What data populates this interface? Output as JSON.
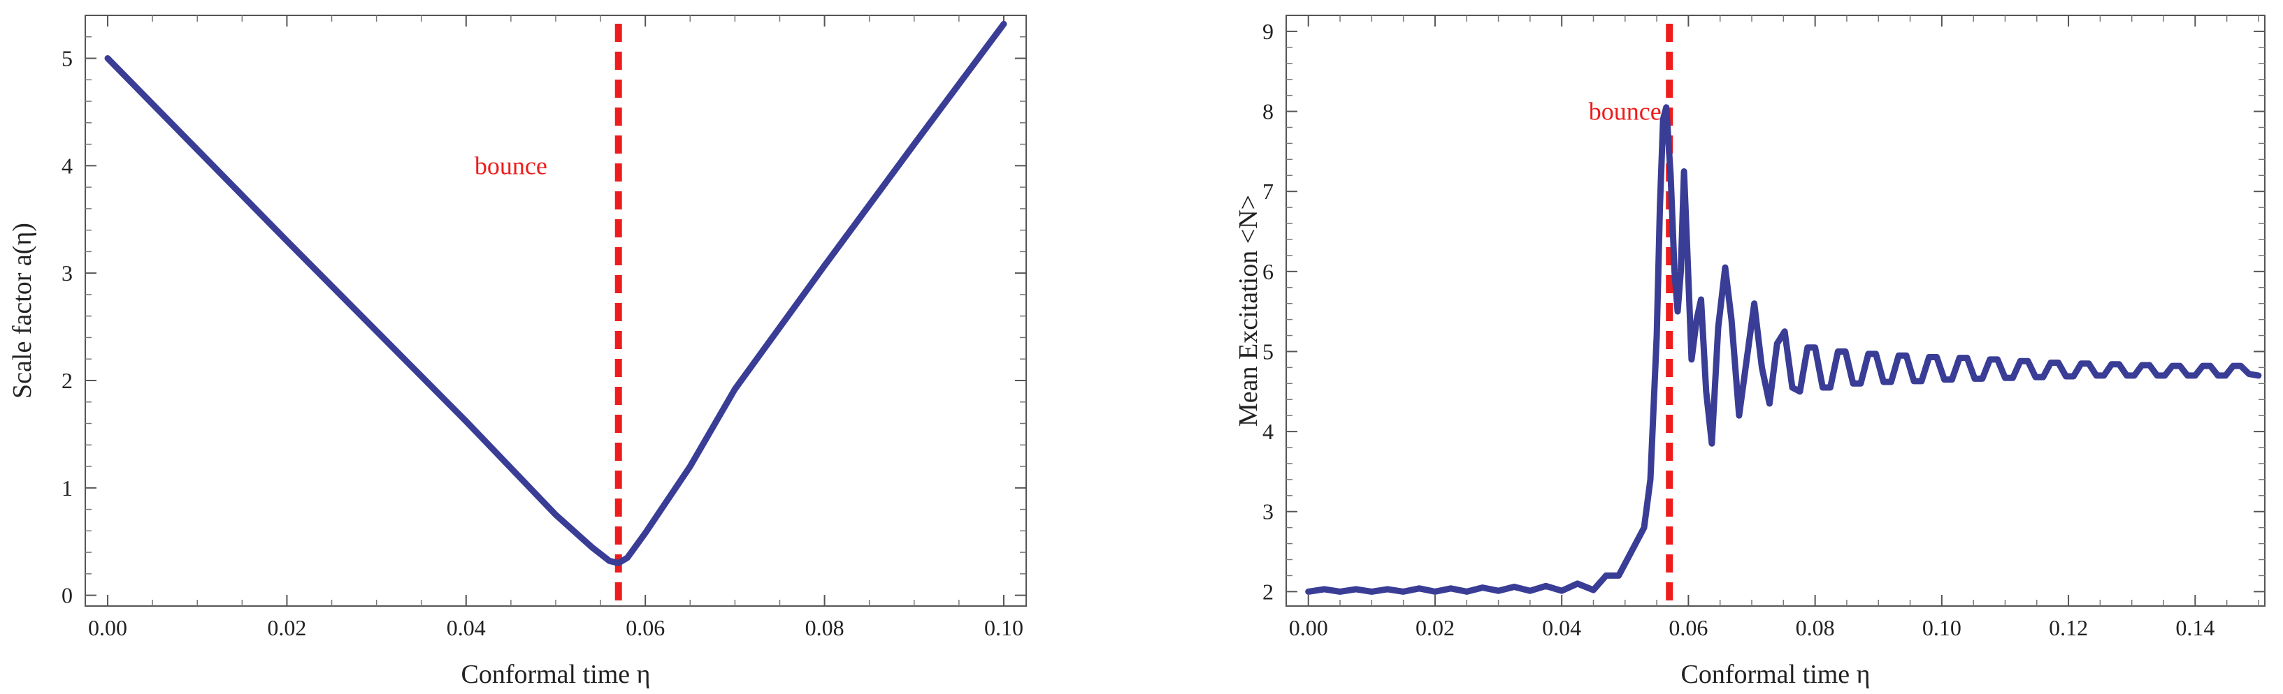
{
  "chart_data": [
    {
      "type": "line",
      "id": "scale",
      "title": "",
      "xlabel": "Conformal time η",
      "ylabel": "Scale factor a(η)",
      "xlim": [
        -0.0025,
        0.1025
      ],
      "ylim": [
        -0.1,
        5.4
      ],
      "x_ticks": [
        0.0,
        0.02,
        0.04,
        0.06,
        0.08,
        0.1
      ],
      "x_tick_labels": [
        "0.00",
        "0.02",
        "0.04",
        "0.06",
        "0.08",
        "0.10"
      ],
      "y_ticks": [
        0,
        1,
        2,
        3,
        4,
        5
      ],
      "y_tick_labels": [
        "0",
        "1",
        "2",
        "3",
        "4",
        "5"
      ],
      "series": [
        {
          "name": "a(η)",
          "color": "#3a3d96",
          "x": [
            0.0,
            0.01,
            0.02,
            0.03,
            0.04,
            0.05,
            0.054,
            0.056,
            0.057,
            0.058,
            0.06,
            0.065,
            0.07,
            0.08,
            0.09,
            0.1
          ],
          "y": [
            5.0,
            4.15,
            3.3,
            2.46,
            1.62,
            0.75,
            0.45,
            0.32,
            0.3,
            0.35,
            0.58,
            1.2,
            1.92,
            3.07,
            4.2,
            5.32
          ]
        }
      ],
      "vline": {
        "x": 0.057,
        "color": "#ee1c1c"
      },
      "annotation": {
        "text": "bounce",
        "x": 0.045,
        "y": 4.0,
        "color": "#ee1c1c"
      }
    },
    {
      "type": "line",
      "id": "excitation",
      "title": "",
      "xlabel": "Conformal time η",
      "ylabel": "Mean Excitation <N>",
      "xlim": [
        -0.0035,
        0.151
      ],
      "ylim": [
        1.82,
        9.2
      ],
      "x_ticks": [
        0.0,
        0.02,
        0.04,
        0.06,
        0.08,
        0.1,
        0.12,
        0.14
      ],
      "x_tick_labels": [
        "0.00",
        "0.02",
        "0.04",
        "0.06",
        "0.08",
        "0.10",
        "0.12",
        "0.14"
      ],
      "y_ticks": [
        2,
        3,
        4,
        5,
        6,
        7,
        8,
        9
      ],
      "y_tick_labels": [
        "2",
        "3",
        "4",
        "5",
        "6",
        "7",
        "8",
        "9"
      ],
      "series": [
        {
          "name": "<N>",
          "color": "#3a3d96",
          "x": [
            0.0,
            0.0025,
            0.005,
            0.0075,
            0.01,
            0.0125,
            0.015,
            0.0175,
            0.02,
            0.0225,
            0.025,
            0.0275,
            0.03,
            0.0325,
            0.035,
            0.0375,
            0.04,
            0.0425,
            0.045,
            0.047,
            0.049,
            0.051,
            0.053,
            0.054,
            0.055,
            0.0555,
            0.056,
            0.0565,
            0.0572,
            0.0578,
            0.0583,
            0.0588,
            0.0593,
            0.0598,
            0.0605,
            0.0613,
            0.062,
            0.0628,
            0.0637,
            0.0647,
            0.0658,
            0.0668,
            0.068,
            0.0692,
            0.0704,
            0.0716,
            0.0728,
            0.074,
            0.0752,
            0.0764,
            0.0776,
            0.0788,
            0.08,
            0.0812,
            0.0824,
            0.0836,
            0.0848,
            0.086,
            0.0872,
            0.0884,
            0.0896,
            0.0908,
            0.092,
            0.0932,
            0.0944,
            0.0956,
            0.0968,
            0.098,
            0.0992,
            0.1004,
            0.1016,
            0.1028,
            0.104,
            0.1052,
            0.1064,
            0.1076,
            0.1088,
            0.11,
            0.1112,
            0.1124,
            0.1136,
            0.1148,
            0.116,
            0.1172,
            0.1184,
            0.1196,
            0.1208,
            0.122,
            0.1232,
            0.1244,
            0.1256,
            0.1268,
            0.128,
            0.1292,
            0.1304,
            0.1316,
            0.1328,
            0.134,
            0.1352,
            0.1364,
            0.1376,
            0.1388,
            0.14,
            0.1412,
            0.1424,
            0.1436,
            0.1448,
            0.146,
            0.1472,
            0.1485,
            0.15
          ],
          "y": [
            2.0,
            2.03,
            2.0,
            2.03,
            2.0,
            2.03,
            2.0,
            2.04,
            2.0,
            2.04,
            2.0,
            2.05,
            2.01,
            2.06,
            2.01,
            2.07,
            2.01,
            2.1,
            2.02,
            2.2,
            2.2,
            2.5,
            2.8,
            3.4,
            5.2,
            6.8,
            7.9,
            8.05,
            7.2,
            6.0,
            5.5,
            6.0,
            7.25,
            6.3,
            4.9,
            5.4,
            5.65,
            4.5,
            3.85,
            5.3,
            6.05,
            5.4,
            4.2,
            4.9,
            5.6,
            4.8,
            4.35,
            5.1,
            5.25,
            4.55,
            4.5,
            5.05,
            5.05,
            4.55,
            4.55,
            5.0,
            5.0,
            4.6,
            4.6,
            4.97,
            4.97,
            4.62,
            4.62,
            4.95,
            4.95,
            4.63,
            4.63,
            4.93,
            4.93,
            4.65,
            4.65,
            4.92,
            4.92,
            4.66,
            4.66,
            4.9,
            4.9,
            4.67,
            4.67,
            4.88,
            4.88,
            4.68,
            4.68,
            4.86,
            4.86,
            4.69,
            4.69,
            4.85,
            4.85,
            4.7,
            4.7,
            4.84,
            4.84,
            4.7,
            4.7,
            4.83,
            4.83,
            4.7,
            4.7,
            4.82,
            4.82,
            4.7,
            4.7,
            4.82,
            4.82,
            4.7,
            4.7,
            4.82,
            4.82,
            4.72,
            4.7
          ]
        }
      ],
      "vline": {
        "x": 0.057,
        "color": "#ee1c1c"
      },
      "annotation": {
        "text": "bounce",
        "x": 0.05,
        "y": 8.0,
        "color": "#ee1c1c"
      }
    }
  ]
}
